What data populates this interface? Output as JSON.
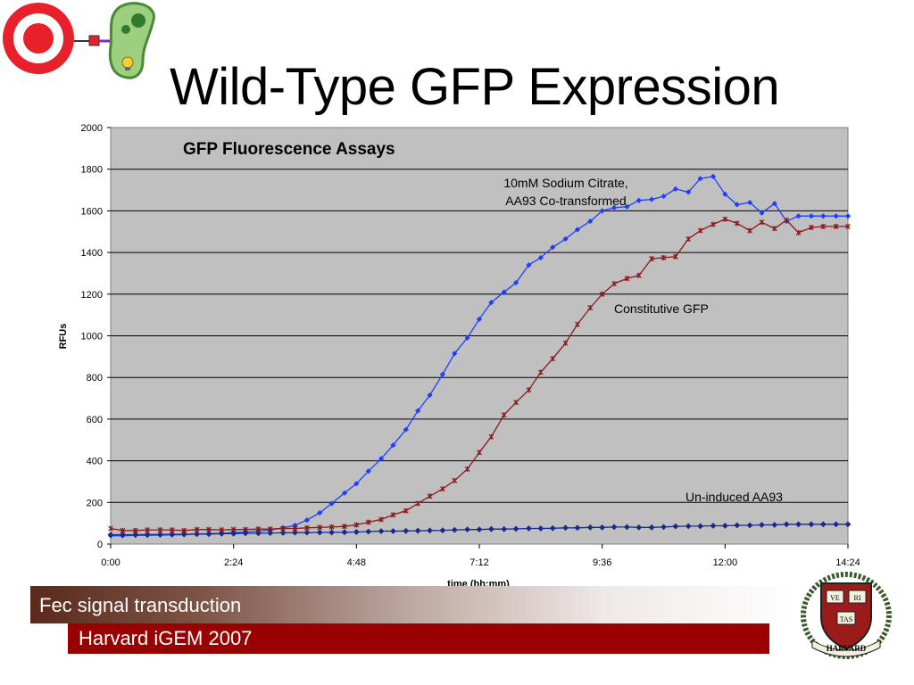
{
  "slide": {
    "title": "Wild-Type GFP Expression",
    "footer_dark": "Fec signal transduction",
    "footer_red": "Harvard iGEM 2007",
    "crest_words": [
      "VE",
      "RI",
      "TAS",
      "HARVARD"
    ],
    "colors": {
      "banner_red": "#990000",
      "banner_dark": "#5a2a1c",
      "logo_red": "#e8202a",
      "logo_green": "#5fa94a"
    }
  },
  "chart_data": {
    "type": "line",
    "title": "GFP Fluorescence Assays",
    "xlabel": "time (hh:mm)",
    "ylabel": "RFUs",
    "xlim": [
      0,
      864
    ],
    "ylim": [
      0,
      2000
    ],
    "x_ticks": [
      "0:00",
      "2:24",
      "4:48",
      "7:12",
      "9:36",
      "12:00",
      "14:24"
    ],
    "y_ticks": [
      "0",
      "200",
      "400",
      "600",
      "800",
      "1000",
      "1200",
      "1400",
      "1600",
      "1800",
      "2000"
    ],
    "grid": true,
    "plot_background": "#c0c0c0",
    "annotations": [
      {
        "text": "10mM Sodium Citrate,",
        "series": 0
      },
      {
        "text": "AA93 Co-transformed",
        "series": 0
      },
      {
        "text": "Constitutive GFP",
        "series": 1
      },
      {
        "text": "Un-induced AA93",
        "series": 2
      }
    ],
    "series": [
      {
        "name": "10mM Sodium Citrate, AA93 Co-transformed",
        "color": "#1f3fff",
        "marker": "diamond",
        "x": [
          0,
          14,
          29,
          43,
          58,
          72,
          86,
          101,
          115,
          130,
          144,
          158,
          173,
          187,
          202,
          216,
          230,
          245,
          259,
          274,
          288,
          302,
          317,
          331,
          346,
          360,
          374,
          389,
          403,
          418,
          432,
          446,
          461,
          475,
          490,
          504,
          518,
          533,
          547,
          562,
          576,
          590,
          605,
          619,
          634,
          648,
          662,
          677,
          691,
          706,
          720,
          734,
          749,
          763,
          778,
          792,
          806,
          821,
          835,
          850,
          864
        ],
        "y": [
          40,
          40,
          42,
          42,
          43,
          44,
          45,
          48,
          50,
          52,
          55,
          58,
          62,
          68,
          78,
          90,
          115,
          150,
          195,
          245,
          290,
          350,
          410,
          475,
          550,
          640,
          715,
          815,
          915,
          990,
          1080,
          1160,
          1210,
          1255,
          1340,
          1375,
          1425,
          1465,
          1510,
          1550,
          1600,
          1615,
          1620,
          1650,
          1655,
          1670,
          1705,
          1690,
          1755,
          1765,
          1680,
          1630,
          1640,
          1590,
          1635,
          1550,
          1575,
          1575,
          1575,
          1575,
          1575
        ]
      },
      {
        "name": "Constitutive GFP",
        "color": "#8b1a1a",
        "marker": "star",
        "x": [
          0,
          14,
          29,
          43,
          58,
          72,
          86,
          101,
          115,
          130,
          144,
          158,
          173,
          187,
          202,
          216,
          230,
          245,
          259,
          274,
          288,
          302,
          317,
          331,
          346,
          360,
          374,
          389,
          403,
          418,
          432,
          446,
          461,
          475,
          490,
          504,
          518,
          533,
          547,
          562,
          576,
          590,
          605,
          619,
          634,
          648,
          662,
          677,
          691,
          706,
          720,
          734,
          749,
          763,
          778,
          792,
          806,
          821,
          835,
          850,
          864
        ],
        "y": [
          75,
          65,
          65,
          68,
          68,
          68,
          65,
          70,
          70,
          68,
          70,
          70,
          72,
          72,
          75,
          75,
          78,
          80,
          82,
          85,
          92,
          105,
          118,
          140,
          160,
          195,
          230,
          265,
          305,
          360,
          440,
          515,
          620,
          680,
          740,
          825,
          890,
          965,
          1055,
          1135,
          1200,
          1250,
          1275,
          1290,
          1370,
          1375,
          1380,
          1465,
          1505,
          1535,
          1560,
          1540,
          1505,
          1545,
          1515,
          1555,
          1495,
          1520,
          1525,
          1525,
          1525
        ]
      },
      {
        "name": "Un-induced AA93",
        "color": "#1a2a8a",
        "marker": "diamond",
        "x": [
          0,
          14,
          29,
          43,
          58,
          72,
          86,
          101,
          115,
          130,
          144,
          158,
          173,
          187,
          202,
          216,
          230,
          245,
          259,
          274,
          288,
          302,
          317,
          331,
          346,
          360,
          374,
          389,
          403,
          418,
          432,
          446,
          461,
          475,
          490,
          504,
          518,
          533,
          547,
          562,
          576,
          590,
          605,
          619,
          634,
          648,
          662,
          677,
          691,
          706,
          720,
          734,
          749,
          763,
          778,
          792,
          806,
          821,
          835,
          850,
          864
        ],
        "y": [
          45,
          45,
          45,
          46,
          46,
          47,
          47,
          48,
          48,
          50,
          50,
          52,
          52,
          53,
          54,
          55,
          55,
          56,
          56,
          57,
          58,
          60,
          62,
          62,
          63,
          64,
          65,
          66,
          68,
          70,
          70,
          72,
          72,
          73,
          75,
          75,
          76,
          78,
          78,
          80,
          80,
          82,
          82,
          80,
          80,
          82,
          85,
          86,
          86,
          88,
          88,
          90,
          90,
          92,
          92,
          95,
          95,
          95,
          95,
          95,
          95
        ]
      }
    ]
  }
}
